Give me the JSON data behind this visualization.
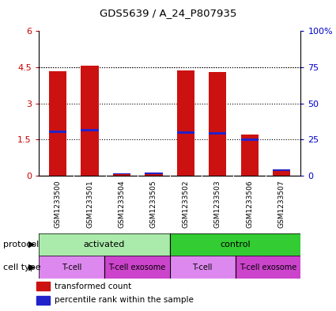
{
  "title": "GDS5639 / A_24_P807935",
  "samples": [
    "GSM1233500",
    "GSM1233501",
    "GSM1233504",
    "GSM1233505",
    "GSM1233502",
    "GSM1233503",
    "GSM1233506",
    "GSM1233507"
  ],
  "transformed_count": [
    4.35,
    4.55,
    0.1,
    0.12,
    4.38,
    4.3,
    1.72,
    0.28
  ],
  "percentile_rank_bottom": [
    1.78,
    1.84,
    0.06,
    0.08,
    1.74,
    1.72,
    1.46,
    0.2
  ],
  "percentile_rank_height": [
    0.1,
    0.1,
    0.05,
    0.05,
    0.1,
    0.1,
    0.08,
    0.07
  ],
  "ylim_left": [
    0,
    6
  ],
  "ylim_right": [
    0,
    100
  ],
  "yticks_left": [
    0,
    1.5,
    3.0,
    4.5
  ],
  "yticks_left_labels": [
    "0",
    "1.5",
    "3",
    "4.5"
  ],
  "ytick_top_left": 6,
  "ytick_top_left_label": "6",
  "yticks_right": [
    0,
    25,
    50,
    75,
    100
  ],
  "yticks_right_labels": [
    "0",
    "25",
    "50",
    "75",
    "100%"
  ],
  "protocol_groups": [
    {
      "label": "activated",
      "start": 0,
      "end": 4,
      "color": "#aaeaaa"
    },
    {
      "label": "control",
      "start": 4,
      "end": 8,
      "color": "#33cc33"
    }
  ],
  "cell_type_groups": [
    {
      "label": "T-cell",
      "start": 0,
      "end": 2,
      "color": "#dd88ee"
    },
    {
      "label": "T-cell exosome",
      "start": 2,
      "end": 4,
      "color": "#cc44cc"
    },
    {
      "label": "T-cell",
      "start": 4,
      "end": 6,
      "color": "#dd88ee"
    },
    {
      "label": "T-cell exosome",
      "start": 6,
      "end": 8,
      "color": "#cc44cc"
    }
  ],
  "bar_color": "#cc1111",
  "percentile_color": "#2222cc",
  "background_color": "#ffffff",
  "plot_bg_color": "#ffffff",
  "sample_label_bg": "#cccccc",
  "legend_items": [
    {
      "label": "transformed count",
      "color": "#cc1111"
    },
    {
      "label": "percentile rank within the sample",
      "color": "#2222cc"
    }
  ]
}
